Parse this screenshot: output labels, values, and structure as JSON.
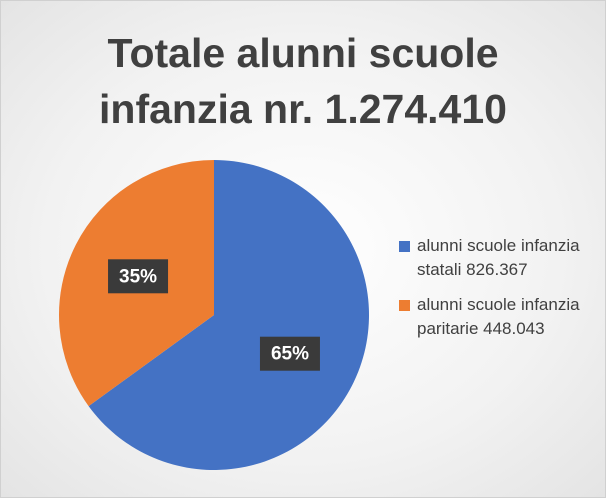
{
  "chart_data": {
    "type": "pie",
    "title": "Totale alunni scuole infanzia nr. 1.274.410",
    "categories": [
      "alunni scuole infanzia statali 826.367",
      "alunni scuole infanzia paritarie 448.043"
    ],
    "values": [
      65,
      35
    ],
    "value_labels": [
      "65%",
      "35%"
    ],
    "colors": [
      "#4472c4",
      "#ed7d31"
    ],
    "legend": "right"
  }
}
